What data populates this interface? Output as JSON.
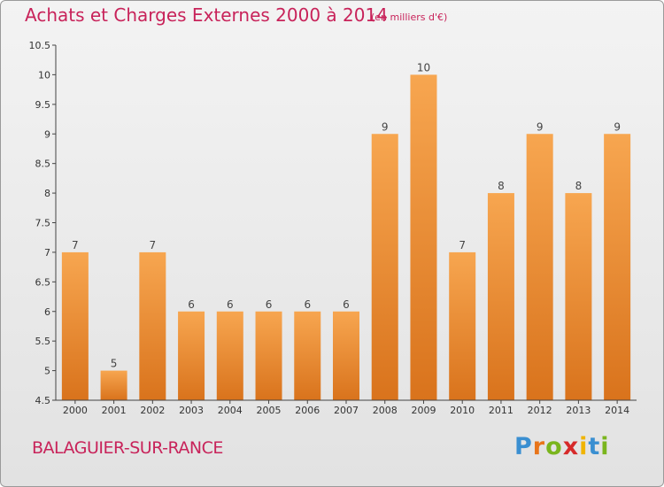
{
  "title": "Achats et Charges Externes 2000 à 2014",
  "subtitle": "(en milliers d'€)",
  "commune": "BALAGUIER-SUR-RANCE",
  "logo": {
    "letters": [
      "P",
      "r",
      "o",
      "x",
      "i",
      "t",
      "i"
    ],
    "colors": [
      "#3a8fd1",
      "#e8751a",
      "#7ab51d",
      "#d62a2a",
      "#f0b400",
      "#3a8fd1",
      "#7ab51d"
    ]
  },
  "colors": {
    "bar_top": "#f7a650",
    "bar_bottom": "#d9731c",
    "title": "#c8235a"
  },
  "chart_data": {
    "type": "bar",
    "categories": [
      "2000",
      "2001",
      "2002",
      "2003",
      "2004",
      "2005",
      "2006",
      "2007",
      "2008",
      "2009",
      "2010",
      "2011",
      "2012",
      "2013",
      "2014"
    ],
    "values": [
      7,
      5,
      7,
      6,
      6,
      6,
      6,
      6,
      9,
      10,
      7,
      8,
      9,
      8,
      9
    ],
    "ylim": [
      4.5,
      10.5
    ],
    "yticks": [
      "4.5",
      "5",
      "5.5",
      "6",
      "6.5",
      "7",
      "7.5",
      "8",
      "8.5",
      "9",
      "9.5",
      "10",
      "10.5"
    ],
    "grid": false
  }
}
